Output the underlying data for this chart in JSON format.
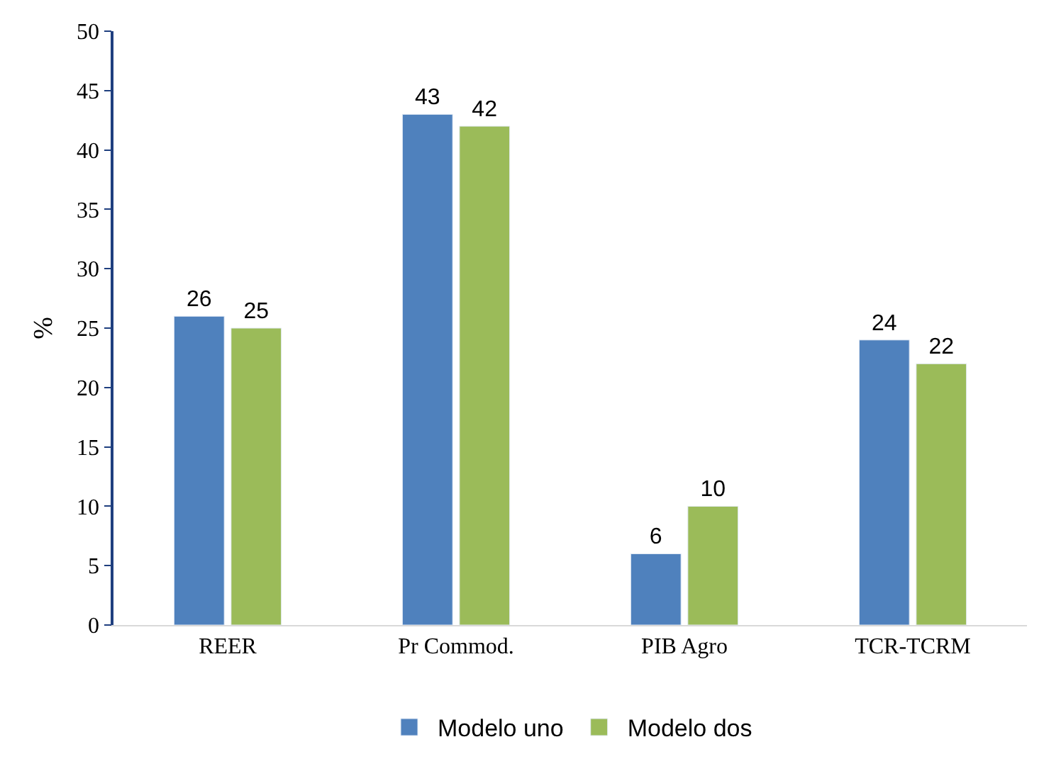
{
  "chart_data": {
    "type": "bar",
    "ylabel": "%",
    "categories": [
      "REER",
      "Pr Commod.",
      "PIB Agro",
      "TCR-TCRM"
    ],
    "series": [
      {
        "name": "Modelo uno",
        "color": "#4f81bd",
        "values": [
          26,
          43,
          6,
          24
        ]
      },
      {
        "name": "Modelo dos",
        "color": "#9bbb59",
        "values": [
          25,
          42,
          10,
          22
        ]
      }
    ],
    "ylim": [
      0,
      50
    ],
    "yticks": [
      0,
      5,
      10,
      15,
      20,
      25,
      30,
      35,
      40,
      45,
      50
    ],
    "data_labels": true,
    "legend": "bottom"
  }
}
